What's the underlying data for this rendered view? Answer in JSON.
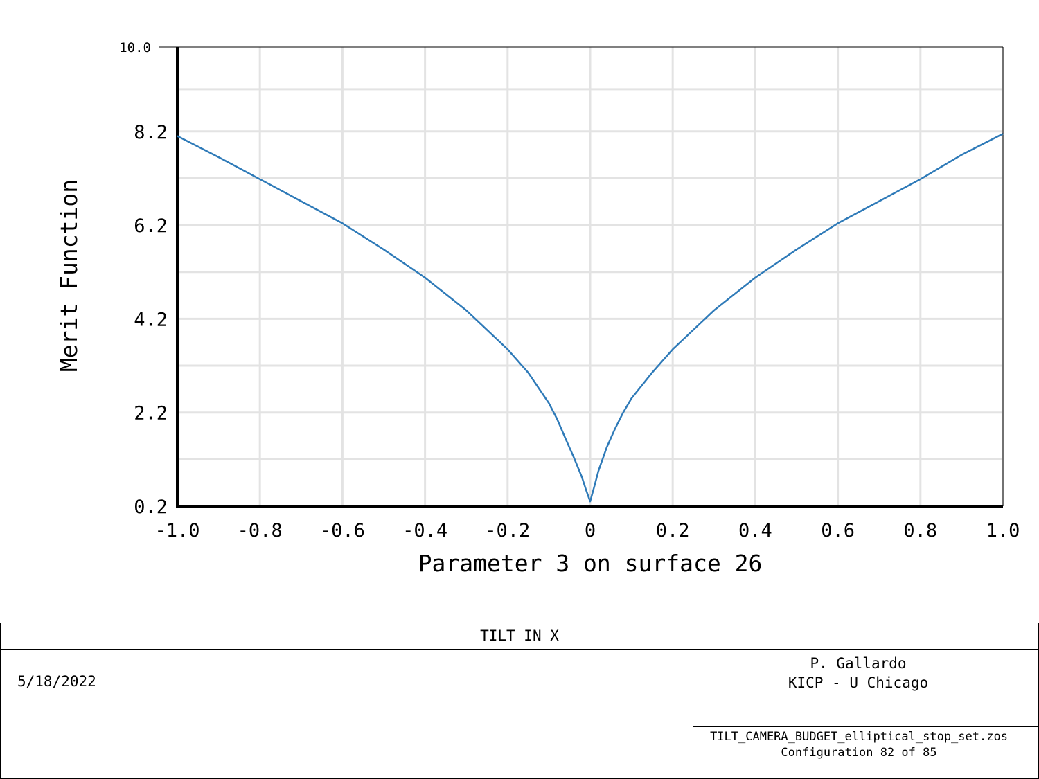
{
  "chart_data": {
    "type": "line",
    "xlabel": "Parameter 3 on surface 26",
    "ylabel": "Merit Function",
    "xlim": [
      -1.0,
      1.0
    ],
    "ylim": [
      0.2,
      10.0
    ],
    "x_ticks": [
      -1.0,
      -0.8,
      -0.6,
      -0.4,
      -0.2,
      0,
      0.2,
      0.4,
      0.6,
      0.8,
      1.0
    ],
    "x_tick_labels": [
      "-1.0",
      "-0.8",
      "-0.6",
      "-0.4",
      "-0.2",
      "0",
      "0.2",
      "0.4",
      "0.6",
      "0.8",
      "1.0"
    ],
    "y_ticks": [
      0.2,
      2.2,
      4.2,
      6.2,
      8.2,
      10.0
    ],
    "y_tick_labels": [
      "0.2",
      "2.2",
      "4.2",
      "6.2",
      "8.2",
      "10.0"
    ],
    "grid": true,
    "line_color": "#2e7ab8",
    "series": [
      {
        "x": [
          -1.0,
          -0.9,
          -0.8,
          -0.7,
          -0.6,
          -0.5,
          -0.4,
          -0.3,
          -0.2,
          -0.15,
          -0.1,
          -0.08,
          -0.06,
          -0.04,
          -0.02,
          -0.01,
          0,
          0.01,
          0.02,
          0.04,
          0.06,
          0.08,
          0.1,
          0.15,
          0.2,
          0.3,
          0.4,
          0.5,
          0.6,
          0.7,
          0.8,
          0.9,
          1.0
        ],
        "y": [
          8.1,
          7.65,
          7.18,
          6.71,
          6.24,
          5.68,
          5.08,
          4.38,
          3.55,
          3.05,
          2.4,
          2.06,
          1.65,
          1.25,
          0.82,
          0.55,
          0.3,
          0.62,
          0.95,
          1.45,
          1.85,
          2.2,
          2.5,
          3.05,
          3.55,
          4.38,
          5.08,
          5.68,
          6.24,
          6.71,
          7.18,
          7.7,
          8.15
        ]
      }
    ]
  },
  "footer": {
    "title": "TILT IN X",
    "date": "5/18/2022",
    "author_line1": "P. Gallardo",
    "author_line2": "KICP - U Chicago",
    "filename": "TILT_CAMERA_BUDGET_elliptical_stop_set.zos",
    "configuration": "Configuration 82 of 85"
  }
}
